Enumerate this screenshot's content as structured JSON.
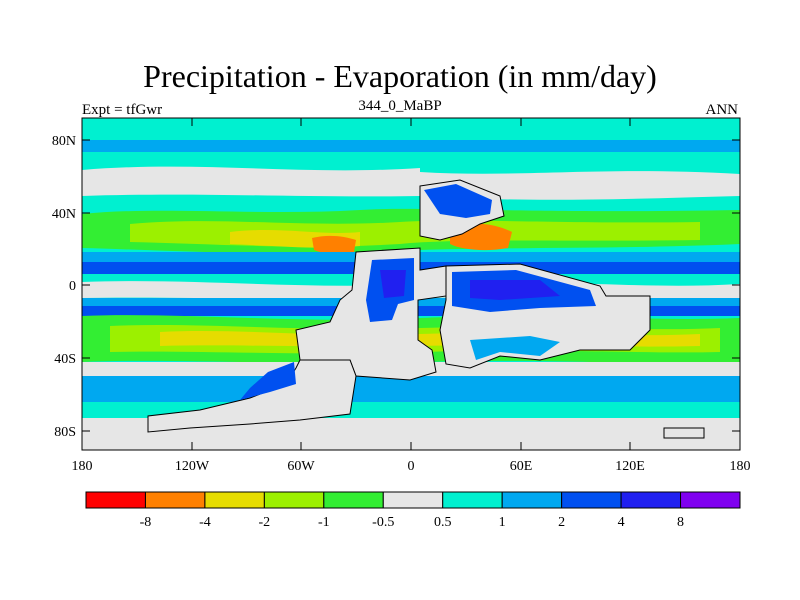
{
  "figure": {
    "title": "Precipitation - Evaporation (in mm/day)",
    "left_string": "Expt = tfGwr",
    "center_string": "344_0_MaBP",
    "right_string": "ANN"
  },
  "map": {
    "lat_ticks": [
      "80N",
      "40N",
      "0",
      "40S",
      "80S"
    ],
    "lon_ticks": [
      "180",
      "120W",
      "60W",
      "0",
      "60E",
      "120E",
      "180"
    ]
  },
  "legend": {
    "labels": [
      "-8",
      "-4",
      "-2",
      "-1",
      "-0.5",
      "0.5",
      "1",
      "2",
      "4",
      "8"
    ],
    "colors": [
      "#ff0000",
      "#ff8000",
      "#e6dc00",
      "#9cf000",
      "#33ee33",
      "#e6e6e6",
      "#00f0d0",
      "#00a8f0",
      "#0050f0",
      "#2020f0",
      "#8000f0"
    ]
  }
}
